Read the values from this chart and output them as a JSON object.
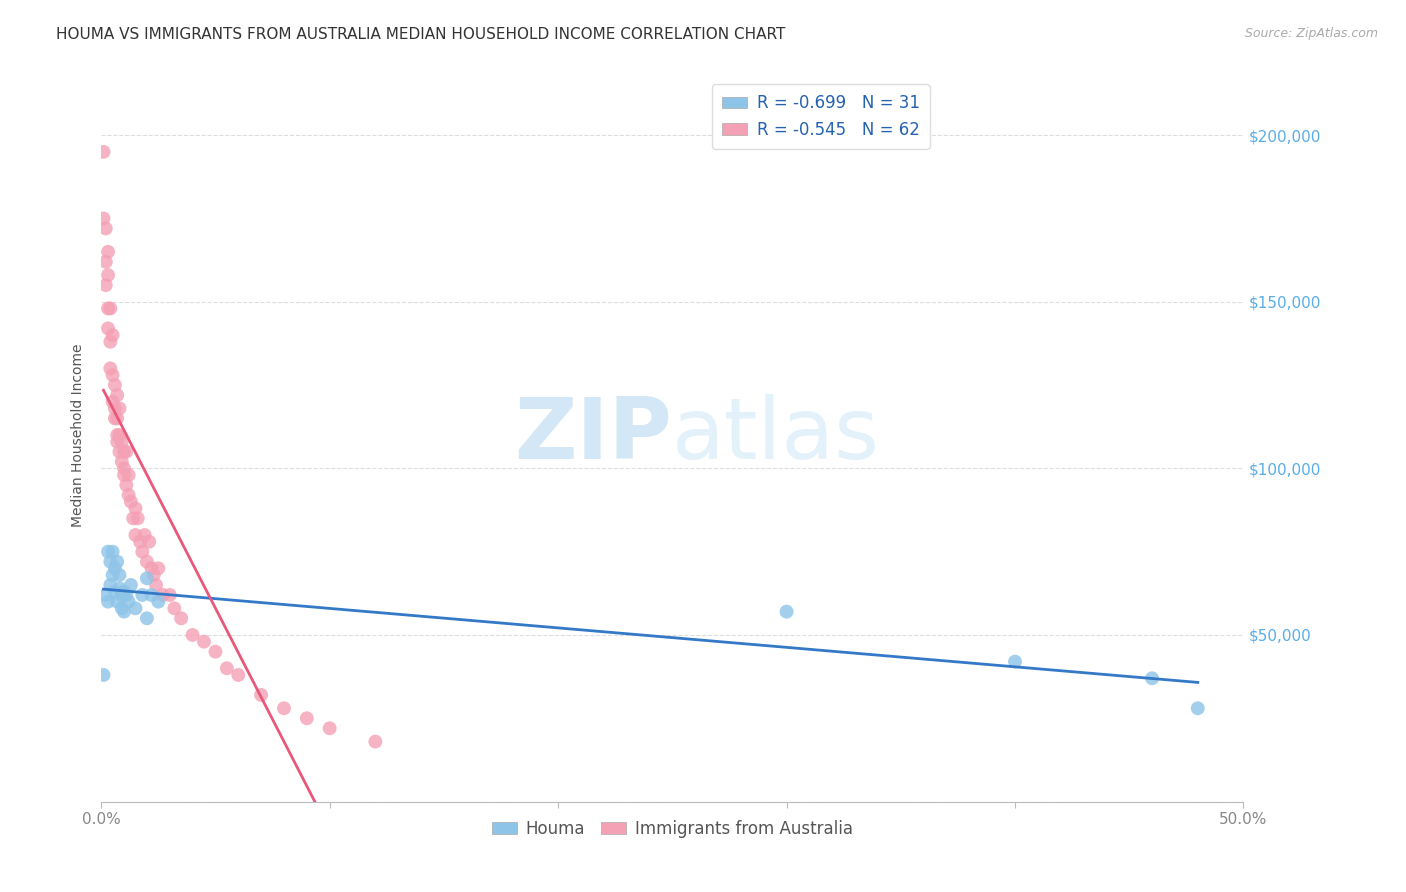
{
  "title": "HOUMA VS IMMIGRANTS FROM AUSTRALIA MEDIAN HOUSEHOLD INCOME CORRELATION CHART",
  "source": "Source: ZipAtlas.com",
  "ylabel": "Median Household Income",
  "ylim": [
    0,
    220000
  ],
  "xlim": [
    0,
    0.5
  ],
  "yticks": [
    0,
    50000,
    100000,
    150000,
    200000
  ],
  "ytick_labels_right": [
    "",
    "$50,000",
    "$100,000",
    "$150,000",
    "$200,000"
  ],
  "xtick_positions": [
    0.0,
    0.1,
    0.2,
    0.3,
    0.4,
    0.5
  ],
  "houma_color": "#8ec4e8",
  "australia_color": "#f4a0b5",
  "houma_R": -0.699,
  "houma_N": 31,
  "australia_R": -0.545,
  "australia_N": 62,
  "houma_line_color": "#3478c8",
  "australia_line_color": "#e8587a",
  "legend_label_1": "Houma",
  "legend_label_2": "Immigrants from Australia",
  "watermark_zip": "ZIP",
  "watermark_atlas": "atlas",
  "grid_color": "#dddddd",
  "background_color": "#ffffff",
  "title_fontsize": 11,
  "axis_label_fontsize": 10,
  "tick_label_fontsize": 11,
  "houma_x": [
    0.001,
    0.002,
    0.003,
    0.003,
    0.004,
    0.004,
    0.005,
    0.005,
    0.006,
    0.006,
    0.007,
    0.007,
    0.008,
    0.008,
    0.009,
    0.009,
    0.01,
    0.01,
    0.011,
    0.012,
    0.013,
    0.015,
    0.018,
    0.02,
    0.02,
    0.022,
    0.025,
    0.3,
    0.4,
    0.46,
    0.48
  ],
  "houma_y": [
    38000,
    62000,
    75000,
    60000,
    72000,
    65000,
    75000,
    68000,
    70000,
    63000,
    72000,
    60000,
    68000,
    64000,
    62000,
    58000,
    63000,
    57000,
    62000,
    60000,
    65000,
    58000,
    62000,
    55000,
    67000,
    62000,
    60000,
    57000,
    42000,
    37000,
    28000
  ],
  "australia_x": [
    0.001,
    0.001,
    0.002,
    0.002,
    0.002,
    0.003,
    0.003,
    0.003,
    0.003,
    0.004,
    0.004,
    0.004,
    0.005,
    0.005,
    0.005,
    0.006,
    0.006,
    0.006,
    0.007,
    0.007,
    0.007,
    0.007,
    0.008,
    0.008,
    0.008,
    0.009,
    0.009,
    0.01,
    0.01,
    0.01,
    0.011,
    0.011,
    0.012,
    0.012,
    0.013,
    0.014,
    0.015,
    0.015,
    0.016,
    0.017,
    0.018,
    0.019,
    0.02,
    0.021,
    0.022,
    0.023,
    0.024,
    0.025,
    0.027,
    0.03,
    0.032,
    0.035,
    0.04,
    0.045,
    0.05,
    0.055,
    0.06,
    0.07,
    0.08,
    0.09,
    0.1,
    0.12
  ],
  "australia_y": [
    195000,
    175000,
    172000,
    162000,
    155000,
    165000,
    158000,
    148000,
    142000,
    148000,
    138000,
    130000,
    140000,
    128000,
    120000,
    125000,
    115000,
    118000,
    115000,
    108000,
    122000,
    110000,
    105000,
    118000,
    110000,
    108000,
    102000,
    105000,
    98000,
    100000,
    95000,
    105000,
    92000,
    98000,
    90000,
    85000,
    88000,
    80000,
    85000,
    78000,
    75000,
    80000,
    72000,
    78000,
    70000,
    68000,
    65000,
    70000,
    62000,
    62000,
    58000,
    55000,
    50000,
    48000,
    45000,
    40000,
    38000,
    32000,
    28000,
    25000,
    22000,
    18000
  ],
  "dot_size": 100
}
